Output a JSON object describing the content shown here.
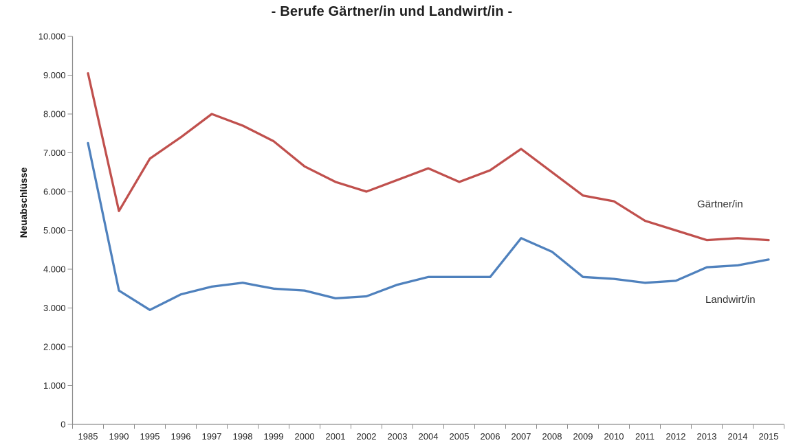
{
  "chart_data": {
    "type": "line",
    "title": "- Berufe Gärtner/in und Landwirt/in -",
    "ylabel": "Neuabschlüsse",
    "xlabel": "",
    "ylim": [
      0,
      10000
    ],
    "ytick_step": 1000,
    "ytick_labels": [
      "0",
      "1.000",
      "2.000",
      "3.000",
      "4.000",
      "5.000",
      "6.000",
      "7.000",
      "8.000",
      "9.000",
      "10.000"
    ],
    "grid": false,
    "legend_position": "inline labels right of lines",
    "categories": [
      "1985",
      "1990",
      "1995",
      "1996",
      "1997",
      "1998",
      "1999",
      "2000",
      "2001",
      "2002",
      "2003",
      "2004",
      "2005",
      "2006",
      "2007",
      "2008",
      "2009",
      "2010",
      "2011",
      "2012",
      "2013",
      "2014",
      "2015"
    ],
    "series": [
      {
        "name": "Gärtner/in",
        "color": "#C0504D",
        "values": [
          9050,
          5500,
          6850,
          7400,
          8000,
          7700,
          7300,
          6650,
          6250,
          6000,
          6300,
          6600,
          6250,
          6550,
          7100,
          6500,
          5900,
          5750,
          5250,
          5000,
          4750,
          4800,
          4750
        ]
      },
      {
        "name": "Landwirt/in",
        "color": "#4F81BD",
        "values": [
          7250,
          3450,
          2950,
          3350,
          3550,
          3650,
          3500,
          3450,
          3250,
          3300,
          3600,
          3800,
          3800,
          3800,
          4800,
          4450,
          3800,
          3750,
          3650,
          3700,
          4050,
          4100,
          4250
        ]
      }
    ],
    "axis_color": "#8C8C8C",
    "text_color": "#262626"
  }
}
